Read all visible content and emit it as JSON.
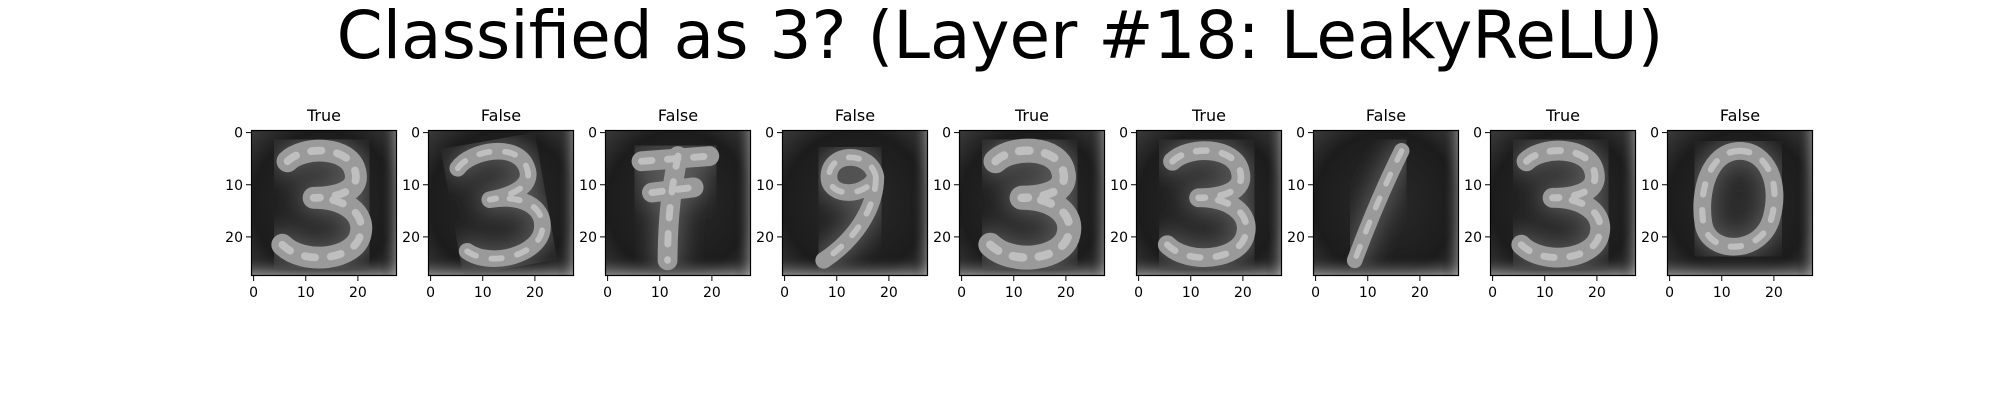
{
  "figure": {
    "title": "Classified as 3? (Layer #18: LeakyReLU)"
  },
  "chart_data": {
    "type": "image-grid",
    "panels": [
      {
        "title": "True",
        "digit": "3"
      },
      {
        "title": "False",
        "digit": "3"
      },
      {
        "title": "False",
        "digit": "7"
      },
      {
        "title": "False",
        "digit": "9"
      },
      {
        "title": "True",
        "digit": "3"
      },
      {
        "title": "True",
        "digit": "3"
      },
      {
        "title": "False",
        "digit": "1"
      },
      {
        "title": "True",
        "digit": "3"
      },
      {
        "title": "False",
        "digit": "0"
      }
    ],
    "xticks": [
      "0",
      "10",
      "20"
    ],
    "yticks": [
      "0",
      "10",
      "20"
    ],
    "xlim": [
      0,
      27
    ],
    "ylim": [
      27,
      0
    ],
    "colormap": "gray"
  }
}
